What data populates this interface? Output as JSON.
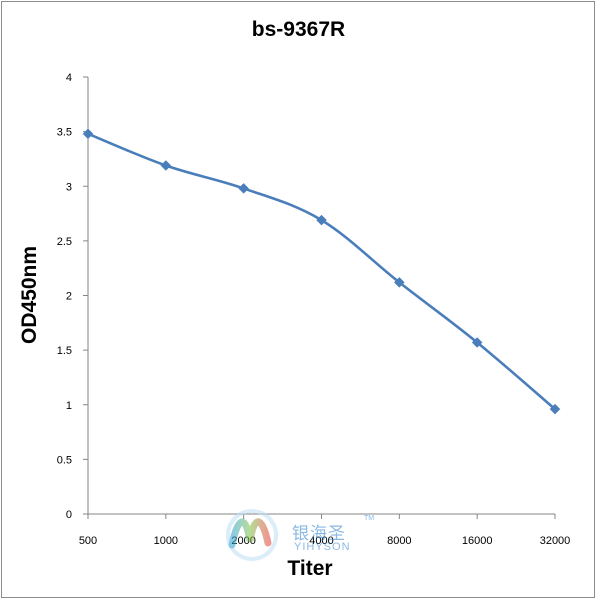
{
  "chart_data": {
    "type": "line",
    "title": "bs-9367R",
    "xlabel": "Titer",
    "ylabel": "OD450nm",
    "categories": [
      "500",
      "1000",
      "2000",
      "4000",
      "8000",
      "16000",
      "32000"
    ],
    "series": [
      {
        "values": [
          3.48,
          3.19,
          2.98,
          2.69,
          2.12,
          1.57,
          0.96
        ],
        "color": "#4a7ebb"
      }
    ],
    "ylim": [
      0,
      4
    ],
    "yticks": [
      "0",
      "0.5",
      "1",
      "1.5",
      "2",
      "2.5",
      "3",
      "3.5",
      "4"
    ],
    "grid": false,
    "legend": "none",
    "marker": "diamond"
  },
  "watermark": {
    "cn_text": "银海圣",
    "en_text": "YIHYSON",
    "tm": "TM"
  }
}
